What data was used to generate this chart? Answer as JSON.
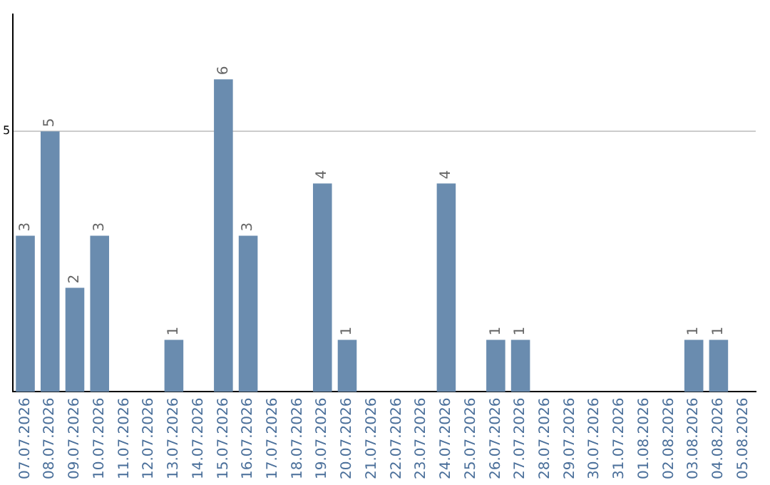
{
  "chart_data": {
    "type": "bar",
    "categories": [
      "07.07.2026",
      "08.07.2026",
      "09.07.2026",
      "10.07.2026",
      "11.07.2026",
      "12.07.2026",
      "13.07.2026",
      "14.07.2026",
      "15.07.2026",
      "16.07.2026",
      "17.07.2026",
      "18.07.2026",
      "19.07.2026",
      "20.07.2026",
      "21.07.2026",
      "22.07.2026",
      "23.07.2026",
      "24.07.2026",
      "25.07.2026",
      "26.07.2026",
      "27.07.2026",
      "28.07.2026",
      "29.07.2026",
      "30.07.2026",
      "31.07.2026",
      "01.08.2026",
      "02.08.2026",
      "03.08.2026",
      "04.08.2026",
      "05.08.2026"
    ],
    "values": [
      3,
      5,
      2,
      3,
      0,
      0,
      1,
      0,
      6,
      3,
      0,
      0,
      4,
      1,
      0,
      0,
      0,
      4,
      0,
      1,
      1,
      0,
      0,
      0,
      0,
      0,
      0,
      1,
      1,
      0
    ],
    "value_labels": [
      "3",
      "5",
      "2",
      "3",
      null,
      null,
      "1",
      null,
      "6",
      "3",
      null,
      null,
      "4",
      "1",
      null,
      null,
      null,
      "4",
      null,
      "1",
      "1",
      null,
      null,
      null,
      null,
      null,
      null,
      "1",
      "1",
      null
    ],
    "color": "#6a8caf",
    "ylim": [
      0,
      7.25
    ],
    "yticks": [
      5
    ],
    "grid": "y"
  }
}
